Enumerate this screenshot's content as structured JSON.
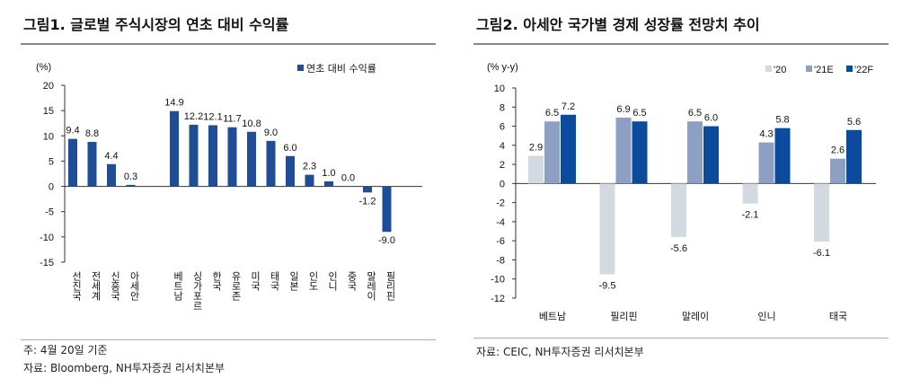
{
  "chart_data": [
    {
      "type": "bar",
      "title": "그림1. 글로벌 주식시장의 연초 대비 수익률",
      "ylabel": "(%)",
      "ylim": [
        -15,
        20
      ],
      "yticks": [
        20,
        15,
        10,
        5,
        0,
        -5,
        -10,
        -15
      ],
      "categories": [
        "선진국",
        "전세계",
        "신흥국",
        "아세안",
        "베트남",
        "싱가포르",
        "한국",
        "유로존",
        "미국",
        "태국",
        "일본",
        "인도",
        "인니",
        "중국",
        "말레이",
        "필리핀"
      ],
      "series": [
        {
          "name": "연초 대비 수익률",
          "color": "#1f4e96",
          "values": [
            9.4,
            8.8,
            4.4,
            0.3,
            14.9,
            12.2,
            12.1,
            11.7,
            10.8,
            9.0,
            6.0,
            2.3,
            1.0,
            0.0,
            -1.2,
            -9.0
          ]
        }
      ],
      "legend": "top-right",
      "notes": [
        "주: 4월 20일 기준",
        "자료: Bloomberg, NH투자증권 리서치본부"
      ]
    },
    {
      "type": "bar",
      "title": "그림2. 아세안 국가별 경제 성장률 전망치 추이",
      "ylabel": "(% y-y)",
      "ylim": [
        -12,
        10
      ],
      "yticks": [
        10,
        8,
        6,
        4,
        2,
        0,
        -2,
        -4,
        -6,
        -8,
        -10,
        -12
      ],
      "categories": [
        "베트남",
        "필리핀",
        "말레이",
        "인니",
        "태국"
      ],
      "series": [
        {
          "name": "'20",
          "color": "#d3d9e0",
          "values": [
            2.9,
            -9.5,
            -5.6,
            -2.1,
            -6.1
          ]
        },
        {
          "name": "'21E",
          "color": "#8da0c4",
          "values": [
            6.5,
            6.9,
            6.5,
            4.3,
            2.6
          ]
        },
        {
          "name": "'22F",
          "color": "#0b4a9c",
          "values": [
            7.2,
            6.5,
            6.0,
            5.8,
            5.6
          ]
        }
      ],
      "legend": "top-right",
      "notes": [
        "자료: CEIC, NH투자증권 리서치본부"
      ]
    }
  ]
}
